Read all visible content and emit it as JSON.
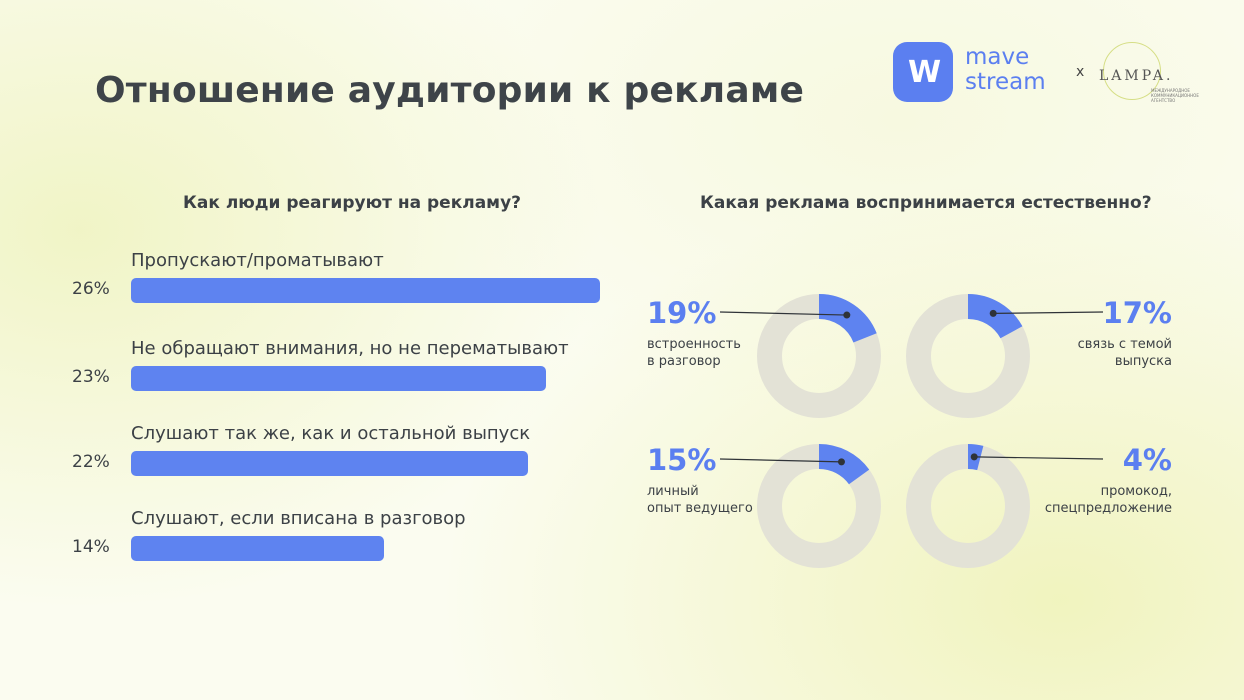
{
  "title": "Отношение аудитории к рекламе",
  "logo": {
    "mark": "W",
    "line1": "mave",
    "line2": "stream",
    "x": "x",
    "partner": "LAMPA.",
    "partner_sub": "МЕЖДУНАРОДНОЕ КОММУНИКАЦИОННОЕ АГЕНТСТВО"
  },
  "colors": {
    "accent": "#5e83f0",
    "track": "#e3e2d6",
    "text": "#3c4146"
  },
  "chart_data": [
    {
      "type": "bar",
      "title": "Как люди реагируют на рекламу?",
      "orientation": "horizontal",
      "categories": [
        "Пропускают/проматывают",
        "Не обращают внимания, но не перематывают",
        "Слушают так же, как и остальной выпуск",
        "Слушают, если вписана в разговор"
      ],
      "values": [
        26,
        23,
        22,
        14
      ],
      "value_labels": [
        "26%",
        "23%",
        "22%",
        "14%"
      ],
      "unit": "%"
    },
    {
      "type": "pie",
      "title": "Какая реклама воспринимается естественно?",
      "style": "donut",
      "categories": [
        "встроенность в разговор",
        "связь с темой выпуска",
        "личный опыт ведущего",
        "промокод, спецпредложение"
      ],
      "values": [
        19,
        17,
        15,
        4
      ],
      "value_labels": [
        "19%",
        "17%",
        "15%",
        "4%"
      ],
      "desc_lines": [
        [
          "встроенность",
          "в разговор"
        ],
        [
          "связь с темой",
          "выпуска"
        ],
        [
          "личный",
          "опыт ведущего"
        ],
        [
          "промокод,",
          "спецпредложение"
        ]
      ],
      "unit": "%"
    }
  ]
}
